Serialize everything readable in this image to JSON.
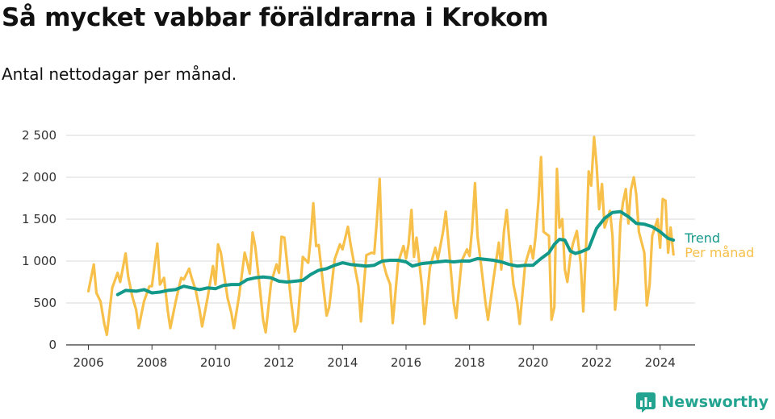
{
  "title": "Så mycket vabbar föräldrarna i Krokom",
  "subtitle": "Antal nettodagar per månad.",
  "brand": "Newsworthy",
  "colors": {
    "monthly": "#f7c04a",
    "trend": "#13998a",
    "grid": "#d9d9d9",
    "axis": "#333333",
    "brand": "#23a490"
  },
  "chart_data": {
    "type": "line",
    "title": "Så mycket vabbar föräldrarna i Krokom",
    "subtitle": "Antal nettodagar per månad.",
    "xlabel": "",
    "ylabel": "",
    "xlim": [
      2005.3,
      2025.1
    ],
    "ylim": [
      0,
      2500
    ],
    "x_ticks": [
      2006,
      2008,
      2010,
      2012,
      2014,
      2016,
      2018,
      2020,
      2022,
      2024
    ],
    "x_tick_labels": [
      "2006",
      "2008",
      "2010",
      "2012",
      "2014",
      "2016",
      "2018",
      "2020",
      "2022",
      "2024"
    ],
    "y_ticks": [
      0,
      500,
      1000,
      1500,
      2000,
      2500
    ],
    "y_tick_labels": [
      "0",
      "500",
      "1 000",
      "1 500",
      "2 000",
      "2 500"
    ],
    "grid": true,
    "series": [
      {
        "name": "Per månad",
        "label": "Per månad",
        "color": "#f7c04a",
        "points": [
          [
            2006.0,
            640
          ],
          [
            2006.17,
            960
          ],
          [
            2006.25,
            620
          ],
          [
            2006.38,
            520
          ],
          [
            2006.5,
            250
          ],
          [
            2006.58,
            120
          ],
          [
            2006.75,
            680
          ],
          [
            2006.92,
            860
          ],
          [
            2007.0,
            750
          ],
          [
            2007.17,
            1090
          ],
          [
            2007.25,
            820
          ],
          [
            2007.38,
            580
          ],
          [
            2007.5,
            420
          ],
          [
            2007.58,
            200
          ],
          [
            2007.75,
            520
          ],
          [
            2007.92,
            700
          ],
          [
            2008.0,
            700
          ],
          [
            2008.17,
            1210
          ],
          [
            2008.25,
            720
          ],
          [
            2008.38,
            800
          ],
          [
            2008.5,
            400
          ],
          [
            2008.58,
            200
          ],
          [
            2008.75,
            520
          ],
          [
            2008.92,
            800
          ],
          [
            2009.0,
            780
          ],
          [
            2009.17,
            910
          ],
          [
            2009.25,
            800
          ],
          [
            2009.38,
            650
          ],
          [
            2009.5,
            420
          ],
          [
            2009.58,
            220
          ],
          [
            2009.75,
            560
          ],
          [
            2009.92,
            940
          ],
          [
            2010.0,
            720
          ],
          [
            2010.08,
            1200
          ],
          [
            2010.17,
            1100
          ],
          [
            2010.38,
            560
          ],
          [
            2010.5,
            380
          ],
          [
            2010.58,
            200
          ],
          [
            2010.75,
            600
          ],
          [
            2010.92,
            1100
          ],
          [
            2011.0,
            980
          ],
          [
            2011.08,
            850
          ],
          [
            2011.17,
            1340
          ],
          [
            2011.25,
            1180
          ],
          [
            2011.38,
            740
          ],
          [
            2011.5,
            300
          ],
          [
            2011.58,
            150
          ],
          [
            2011.75,
            740
          ],
          [
            2011.92,
            960
          ],
          [
            2012.0,
            860
          ],
          [
            2012.08,
            1290
          ],
          [
            2012.17,
            1280
          ],
          [
            2012.38,
            520
          ],
          [
            2012.5,
            160
          ],
          [
            2012.58,
            250
          ],
          [
            2012.75,
            1050
          ],
          [
            2012.92,
            980
          ],
          [
            2013.0,
            1280
          ],
          [
            2013.08,
            1690
          ],
          [
            2013.17,
            1180
          ],
          [
            2013.25,
            1190
          ],
          [
            2013.38,
            750
          ],
          [
            2013.5,
            350
          ],
          [
            2013.58,
            450
          ],
          [
            2013.75,
            1020
          ],
          [
            2013.92,
            1200
          ],
          [
            2014.0,
            1140
          ],
          [
            2014.17,
            1410
          ],
          [
            2014.25,
            1210
          ],
          [
            2014.38,
            940
          ],
          [
            2014.5,
            700
          ],
          [
            2014.58,
            280
          ],
          [
            2014.75,
            1070
          ],
          [
            2014.92,
            1100
          ],
          [
            2015.0,
            1090
          ],
          [
            2015.08,
            1480
          ],
          [
            2015.17,
            1980
          ],
          [
            2015.25,
            1030
          ],
          [
            2015.38,
            840
          ],
          [
            2015.5,
            720
          ],
          [
            2015.58,
            260
          ],
          [
            2015.75,
            980
          ],
          [
            2015.92,
            1180
          ],
          [
            2016.0,
            1030
          ],
          [
            2016.08,
            1200
          ],
          [
            2016.17,
            1610
          ],
          [
            2016.25,
            1050
          ],
          [
            2016.33,
            1280
          ],
          [
            2016.5,
            700
          ],
          [
            2016.58,
            250
          ],
          [
            2016.75,
            920
          ],
          [
            2016.92,
            1160
          ],
          [
            2017.0,
            1020
          ],
          [
            2017.08,
            1180
          ],
          [
            2017.17,
            1360
          ],
          [
            2017.25,
            1590
          ],
          [
            2017.38,
            1020
          ],
          [
            2017.5,
            500
          ],
          [
            2017.58,
            320
          ],
          [
            2017.75,
            1000
          ],
          [
            2017.92,
            1140
          ],
          [
            2018.0,
            1060
          ],
          [
            2018.08,
            1380
          ],
          [
            2018.17,
            1930
          ],
          [
            2018.25,
            1300
          ],
          [
            2018.38,
            900
          ],
          [
            2018.5,
            510
          ],
          [
            2018.58,
            300
          ],
          [
            2018.75,
            780
          ],
          [
            2018.92,
            1220
          ],
          [
            2019.0,
            900
          ],
          [
            2019.08,
            1350
          ],
          [
            2019.17,
            1610
          ],
          [
            2019.25,
            1250
          ],
          [
            2019.38,
            720
          ],
          [
            2019.5,
            500
          ],
          [
            2019.58,
            250
          ],
          [
            2019.75,
            960
          ],
          [
            2019.92,
            1180
          ],
          [
            2020.0,
            1030
          ],
          [
            2020.08,
            1300
          ],
          [
            2020.17,
            1720
          ],
          [
            2020.25,
            2240
          ],
          [
            2020.33,
            1350
          ],
          [
            2020.5,
            1300
          ],
          [
            2020.58,
            300
          ],
          [
            2020.67,
            450
          ],
          [
            2020.75,
            2100
          ],
          [
            2020.83,
            1400
          ],
          [
            2020.92,
            1500
          ],
          [
            2021.0,
            900
          ],
          [
            2021.08,
            750
          ],
          [
            2021.17,
            1050
          ],
          [
            2021.25,
            1200
          ],
          [
            2021.38,
            1360
          ],
          [
            2021.5,
            960
          ],
          [
            2021.58,
            400
          ],
          [
            2021.67,
            1200
          ],
          [
            2021.75,
            2070
          ],
          [
            2021.83,
            1900
          ],
          [
            2021.92,
            2480
          ],
          [
            2022.0,
            2150
          ],
          [
            2022.08,
            1620
          ],
          [
            2022.17,
            1920
          ],
          [
            2022.25,
            1400
          ],
          [
            2022.42,
            1600
          ],
          [
            2022.5,
            1300
          ],
          [
            2022.58,
            420
          ],
          [
            2022.67,
            750
          ],
          [
            2022.75,
            1450
          ],
          [
            2022.83,
            1700
          ],
          [
            2022.92,
            1860
          ],
          [
            2023.0,
            1450
          ],
          [
            2023.08,
            1850
          ],
          [
            2023.17,
            2000
          ],
          [
            2023.25,
            1790
          ],
          [
            2023.33,
            1350
          ],
          [
            2023.5,
            1100
          ],
          [
            2023.58,
            470
          ],
          [
            2023.67,
            720
          ],
          [
            2023.75,
            1300
          ],
          [
            2023.92,
            1500
          ],
          [
            2024.0,
            1160
          ],
          [
            2024.08,
            1740
          ],
          [
            2024.17,
            1720
          ],
          [
            2024.25,
            1100
          ],
          [
            2024.33,
            1400
          ],
          [
            2024.42,
            1080
          ]
        ]
      },
      {
        "name": "Trend",
        "label": "Trend",
        "color": "#13998a",
        "points": [
          [
            2006.92,
            600
          ],
          [
            2007.17,
            650
          ],
          [
            2007.5,
            640
          ],
          [
            2007.75,
            660
          ],
          [
            2008.0,
            620
          ],
          [
            2008.25,
            630
          ],
          [
            2008.5,
            650
          ],
          [
            2008.75,
            660
          ],
          [
            2009.0,
            700
          ],
          [
            2009.25,
            680
          ],
          [
            2009.5,
            660
          ],
          [
            2009.75,
            680
          ],
          [
            2010.0,
            670
          ],
          [
            2010.25,
            710
          ],
          [
            2010.5,
            720
          ],
          [
            2010.75,
            720
          ],
          [
            2011.0,
            780
          ],
          [
            2011.25,
            800
          ],
          [
            2011.5,
            810
          ],
          [
            2011.75,
            800
          ],
          [
            2012.0,
            760
          ],
          [
            2012.25,
            750
          ],
          [
            2012.5,
            760
          ],
          [
            2012.75,
            770
          ],
          [
            2013.0,
            840
          ],
          [
            2013.25,
            890
          ],
          [
            2013.5,
            910
          ],
          [
            2013.75,
            950
          ],
          [
            2014.0,
            980
          ],
          [
            2014.25,
            960
          ],
          [
            2014.5,
            950
          ],
          [
            2014.75,
            940
          ],
          [
            2015.0,
            950
          ],
          [
            2015.25,
            1000
          ],
          [
            2015.5,
            1010
          ],
          [
            2015.75,
            1010
          ],
          [
            2016.0,
            990
          ],
          [
            2016.2,
            940
          ],
          [
            2016.5,
            970
          ],
          [
            2016.75,
            980
          ],
          [
            2017.0,
            990
          ],
          [
            2017.25,
            1000
          ],
          [
            2017.5,
            990
          ],
          [
            2017.75,
            1000
          ],
          [
            2018.0,
            1000
          ],
          [
            2018.25,
            1030
          ],
          [
            2018.5,
            1020
          ],
          [
            2018.75,
            1010
          ],
          [
            2019.0,
            990
          ],
          [
            2019.25,
            960
          ],
          [
            2019.5,
            940
          ],
          [
            2019.75,
            950
          ],
          [
            2020.0,
            950
          ],
          [
            2020.25,
            1030
          ],
          [
            2020.5,
            1100
          ],
          [
            2020.67,
            1200
          ],
          [
            2020.83,
            1260
          ],
          [
            2021.0,
            1250
          ],
          [
            2021.17,
            1120
          ],
          [
            2021.33,
            1090
          ],
          [
            2021.5,
            1110
          ],
          [
            2021.75,
            1150
          ],
          [
            2022.0,
            1390
          ],
          [
            2022.25,
            1510
          ],
          [
            2022.5,
            1580
          ],
          [
            2022.75,
            1590
          ],
          [
            2023.0,
            1530
          ],
          [
            2023.25,
            1450
          ],
          [
            2023.5,
            1440
          ],
          [
            2023.75,
            1410
          ],
          [
            2024.0,
            1350
          ],
          [
            2024.25,
            1270
          ],
          [
            2024.42,
            1250
          ]
        ]
      }
    ]
  }
}
